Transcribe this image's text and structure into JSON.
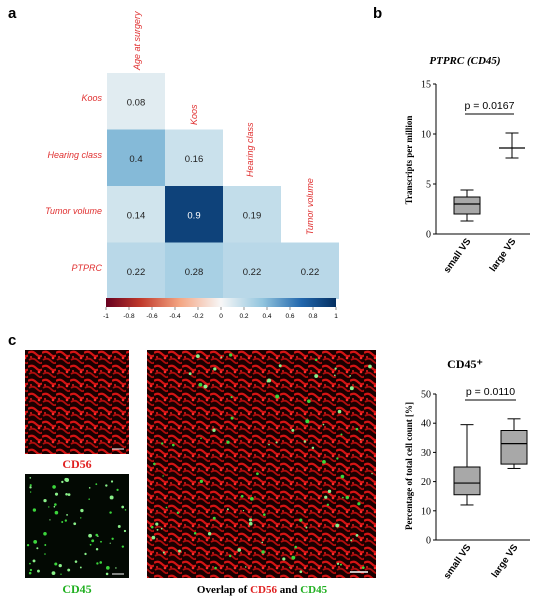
{
  "panels": {
    "a": {
      "label": "a",
      "col_labels": [
        "Age at surgery",
        "Koos",
        "Hearing class",
        "Tumor volume"
      ],
      "row_labels": [
        "Koos",
        "Hearing class",
        "Tumor volume",
        "PTPRC"
      ],
      "cells": [
        {
          "row": 0,
          "col": 0,
          "value": 0.08,
          "text": "0.08"
        },
        {
          "row": 1,
          "col": 0,
          "value": 0.4,
          "text": "0.4"
        },
        {
          "row": 1,
          "col": 1,
          "value": 0.16,
          "text": "0.16"
        },
        {
          "row": 2,
          "col": 0,
          "value": 0.14,
          "text": "0.14"
        },
        {
          "row": 2,
          "col": 1,
          "value": 0.9,
          "text": "0.9"
        },
        {
          "row": 2,
          "col": 2,
          "value": 0.19,
          "text": "0.19"
        },
        {
          "row": 3,
          "col": 0,
          "value": 0.22,
          "text": "0.22"
        },
        {
          "row": 3,
          "col": 1,
          "value": 0.28,
          "text": "0.28"
        },
        {
          "row": 3,
          "col": 2,
          "value": 0.22,
          "text": "0.22"
        },
        {
          "row": 3,
          "col": 3,
          "value": 0.22,
          "text": "0.22"
        }
      ],
      "colorbar_ticks": [
        "-1",
        "-0.8",
        "-0.6",
        "-0.4",
        "-0.2",
        "0",
        "0.2",
        "0.4",
        "0.6",
        "0.8",
        "1"
      ],
      "colors": {
        "negative": "#b2182b",
        "neutral": "#f7f7f7",
        "positive": "#08306b",
        "label_red": "#e03030"
      }
    },
    "b": {
      "label": "b",
      "title": "PTPRC (CD45)",
      "ylabel": "Transcripts per million",
      "pvalue": "p = 0.0167",
      "yticks": [
        "0",
        "5",
        "10",
        "15"
      ]
    },
    "c": {
      "label": "c",
      "caption_cd56": "CD56",
      "caption_cd45": "CD45",
      "overlay_prefix": "Overlap of ",
      "overlay_cd56": "CD56",
      "overlay_and": " and ",
      "overlay_cd45": "CD45",
      "chart_title": "CD45⁺",
      "ylabel": "Percentage of total cell count [%]",
      "pvalue": "p = 0.0110",
      "yticks": [
        "0",
        "10",
        "20",
        "30",
        "40",
        "50"
      ]
    }
  },
  "chart_data": [
    {
      "type": "heatmap",
      "title": "",
      "x_categories": [
        "Age at surgery",
        "Koos",
        "Hearing class",
        "Tumor volume"
      ],
      "y_categories": [
        "Koos",
        "Hearing class",
        "Tumor volume",
        "PTPRC"
      ],
      "values": [
        [
          0.08,
          null,
          null,
          null
        ],
        [
          0.4,
          0.16,
          null,
          null
        ],
        [
          0.14,
          0.9,
          0.19,
          null
        ],
        [
          0.22,
          0.28,
          0.22,
          0.22
        ]
      ],
      "colorbar_range": [
        -1,
        1
      ]
    },
    {
      "type": "box",
      "title": "PTPRC (CD45)",
      "ylabel": "Transcripts per million",
      "ylim": [
        0,
        15
      ],
      "categories": [
        "small VS",
        "large VS"
      ],
      "boxes": [
        {
          "name": "small VS",
          "min": 1.3,
          "q1": 2.0,
          "median": 3.0,
          "q3": 3.7,
          "max": 4.4
        },
        {
          "name": "large VS",
          "min": 7.6,
          "q1": 7.6,
          "median": 8.6,
          "q3": 10.1,
          "max": 10.1
        }
      ],
      "annotation": "p = 0.0167"
    },
    {
      "type": "box",
      "title": "CD45⁺",
      "ylabel": "Percentage of total cell count [%]",
      "ylim": [
        0,
        50
      ],
      "categories": [
        "small VS",
        "large VS"
      ],
      "boxes": [
        {
          "name": "small VS",
          "min": 12,
          "q1": 15.5,
          "median": 19.5,
          "q3": 25,
          "max": 39.5
        },
        {
          "name": "large VS",
          "min": 24.5,
          "q1": 26,
          "median": 33,
          "q3": 37.5,
          "max": 41.5
        }
      ],
      "annotation": "p = 0.0110"
    }
  ]
}
